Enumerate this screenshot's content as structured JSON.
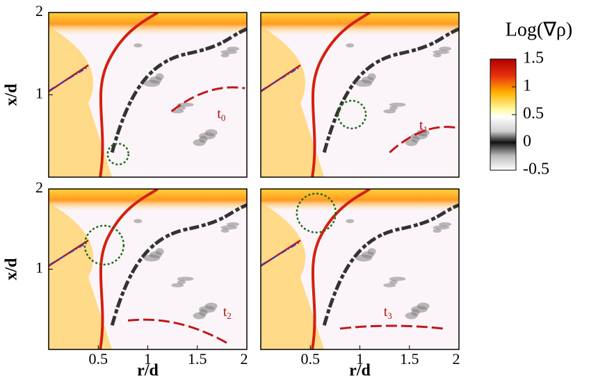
{
  "chart_data": {
    "type": "contour",
    "xlabel": "r/d",
    "ylabel": "x/d",
    "xlim": [
      0,
      2
    ],
    "ylim": [
      0,
      2
    ],
    "xticks": [
      0.5,
      1,
      1.5,
      2
    ],
    "yticks": [
      1,
      2
    ],
    "colorbar": {
      "title": "Log(∇ρ)",
      "clim": [
        -0.5,
        1.5
      ],
      "ticks": [
        1.5,
        1,
        0.5,
        0,
        -0.5
      ]
    },
    "panels": [
      {
        "time": "t",
        "index": "0"
      },
      {
        "time": "t",
        "index": "1"
      },
      {
        "time": "t",
        "index": "2"
      },
      {
        "time": "t",
        "index": "3"
      }
    ]
  }
}
